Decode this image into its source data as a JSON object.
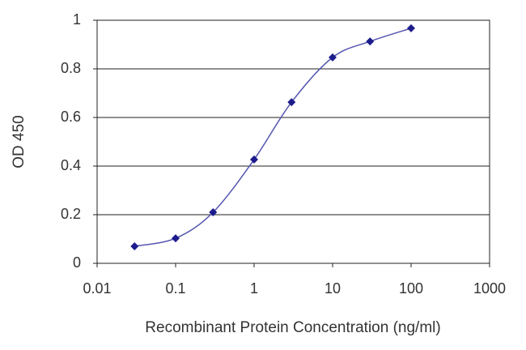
{
  "chart_data": {
    "type": "line",
    "log_x": true,
    "grid": true,
    "xlabel": "Recombinant Protein Concentration (ng/ml)",
    "ylabel": "OD 450",
    "x": [
      0.03,
      0.1,
      0.3,
      1,
      3,
      10,
      30,
      100
    ],
    "series": [
      {
        "color": "#1c1c8c",
        "values": [
          0.07,
          0.103,
          0.21,
          0.427,
          0.663,
          0.847,
          0.913,
          0.967
        ]
      }
    ],
    "xlim": [
      0.01,
      1000
    ],
    "xticks": [
      0.01,
      0.1,
      1,
      10,
      100,
      1000
    ],
    "ylim": [
      0,
      1
    ],
    "yticks": [
      0,
      0.2,
      0.4,
      0.6,
      0.8,
      1
    ]
  }
}
